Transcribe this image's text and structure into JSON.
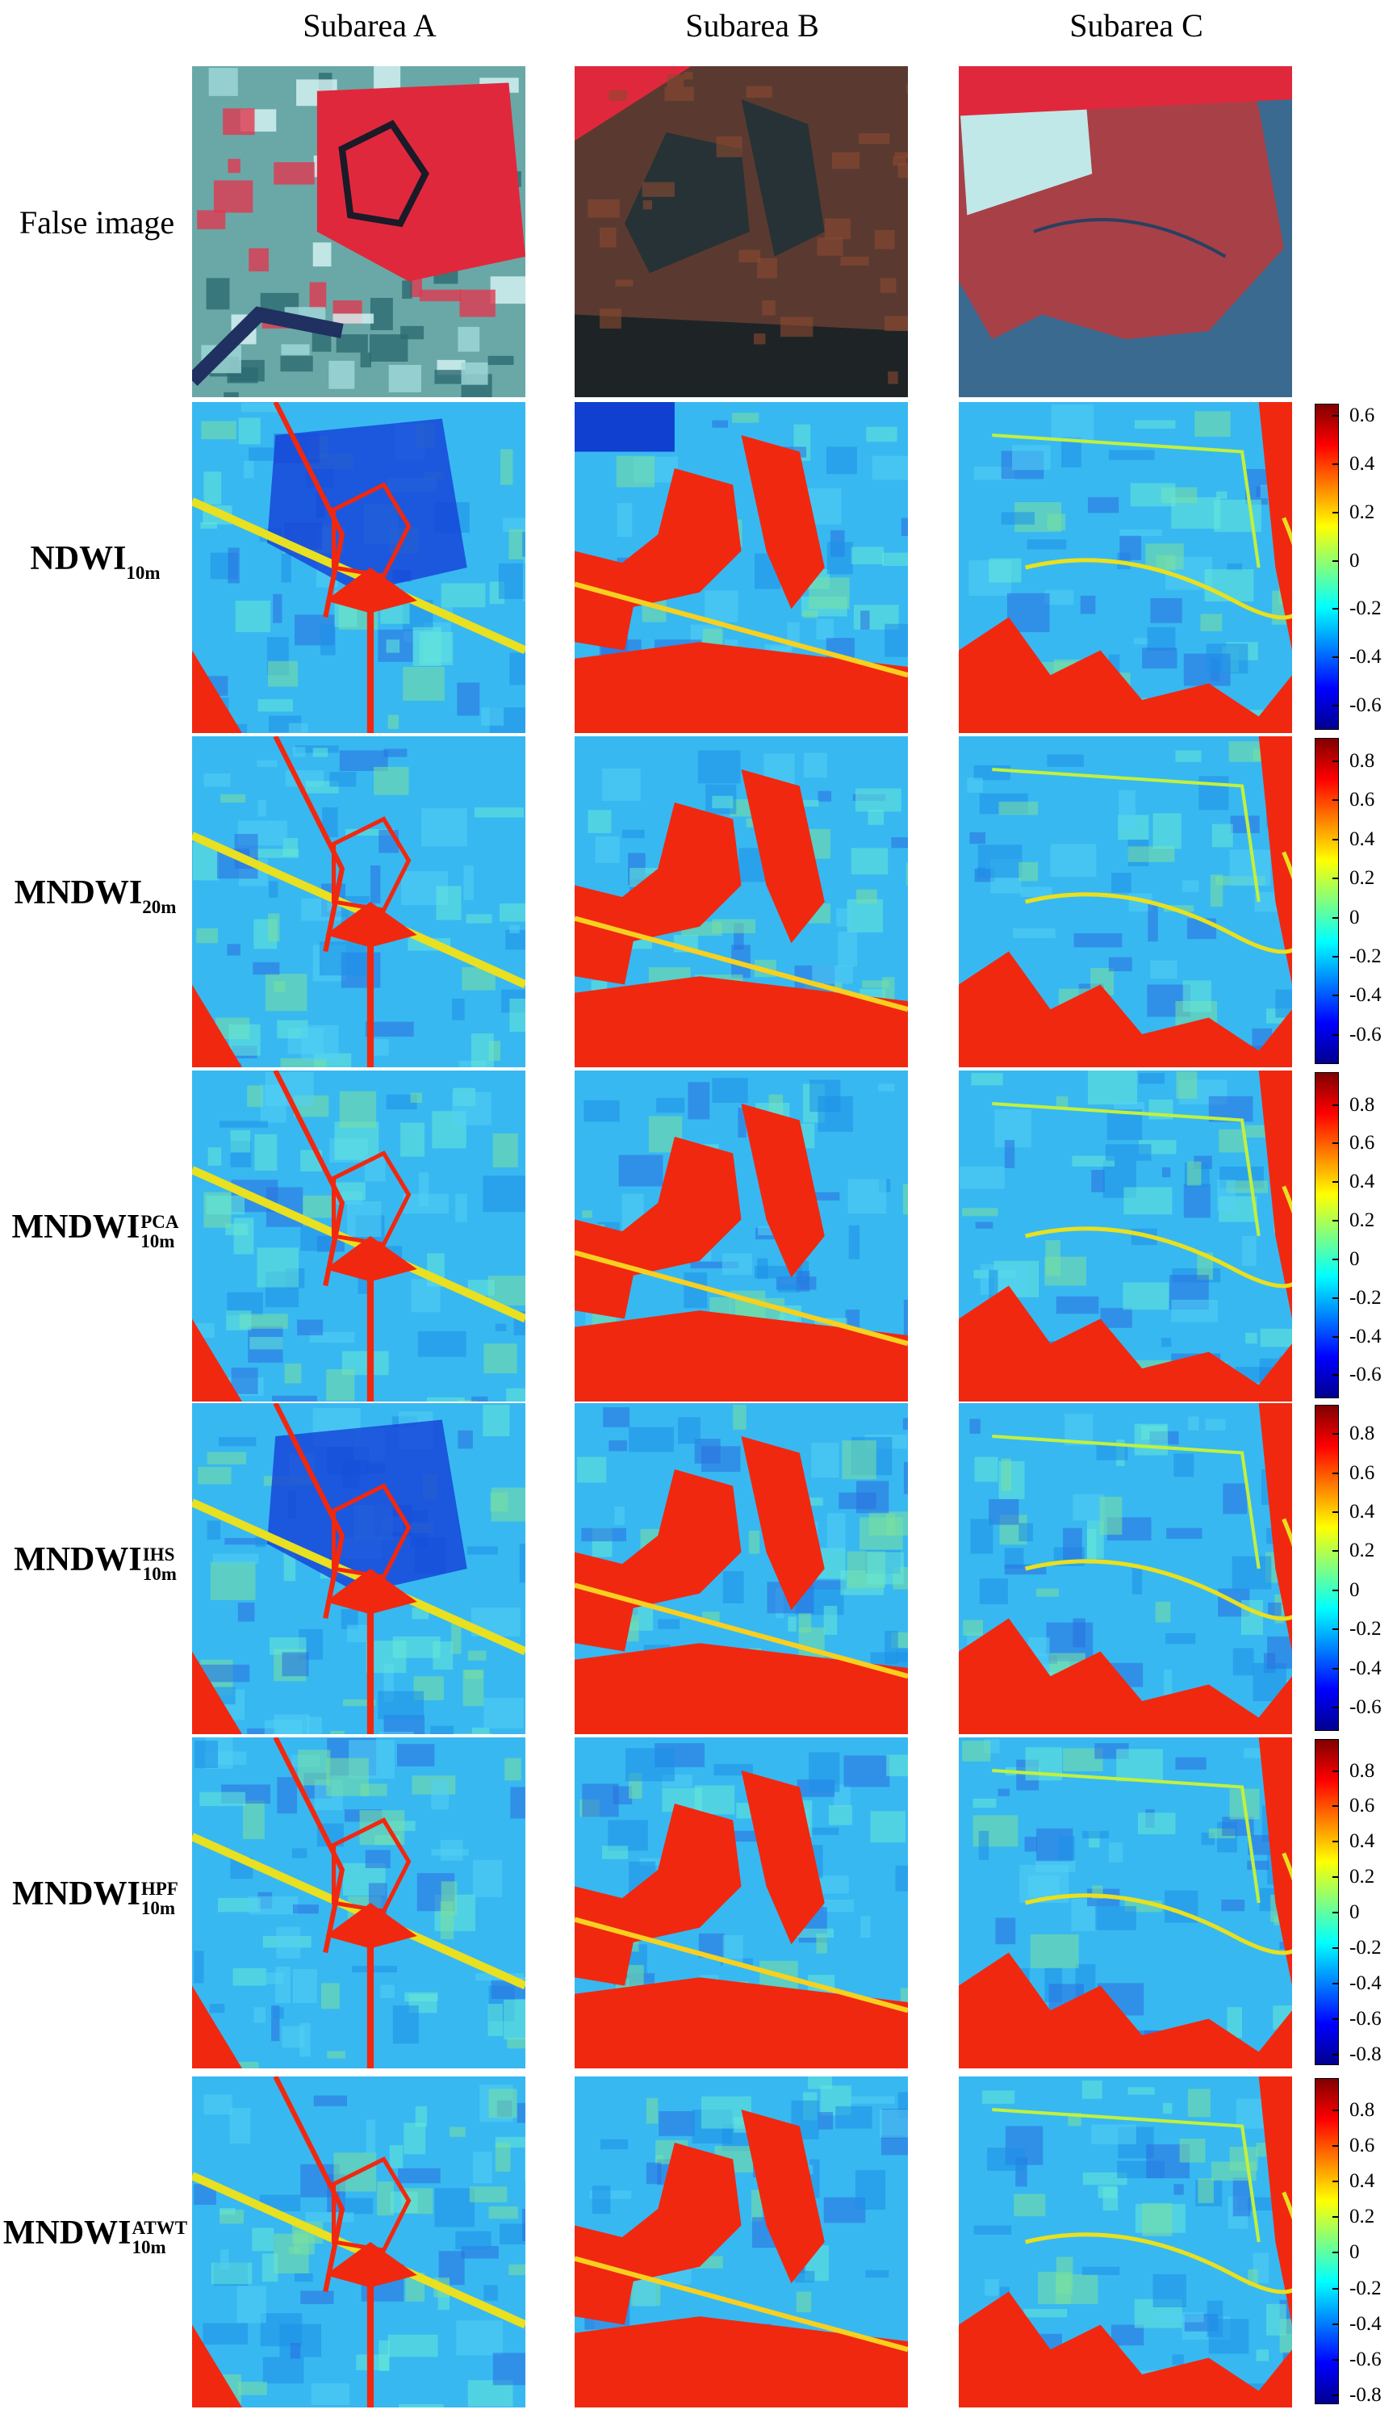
{
  "columns": [
    "Subarea A",
    "Subarea B",
    "Subarea C"
  ],
  "rows": [
    {
      "id": "false-image",
      "label": "False image",
      "type": "false-color"
    },
    {
      "id": "ndwi-10m",
      "label": "NDWI",
      "sub": "10m",
      "sup": "",
      "type": "index"
    },
    {
      "id": "mndwi-20m",
      "label": "MNDWI",
      "sub": "20m",
      "sup": "",
      "type": "index"
    },
    {
      "id": "mndwi-pca",
      "label": "MNDWI",
      "sub": "10m",
      "sup": "PCA",
      "type": "index"
    },
    {
      "id": "mndwi-ihs",
      "label": "MNDWI",
      "sub": "10m",
      "sup": "IHS",
      "type": "index"
    },
    {
      "id": "mndwi-hpf",
      "label": "MNDWI",
      "sub": "10m",
      "sup": "HPF",
      "type": "index"
    },
    {
      "id": "mndwi-atwt",
      "label": "MNDWI",
      "sub": "10m",
      "sup": "ATWT",
      "type": "index"
    }
  ],
  "colorbars": [
    {
      "row": "ndwi-10m",
      "min": -0.7,
      "max": 0.65,
      "ticks": [
        "0.6",
        "0.4",
        "0.2",
        "0",
        "-0.2",
        "-0.4",
        "-0.6"
      ],
      "tick_values": [
        0.6,
        0.4,
        0.2,
        0,
        -0.2,
        -0.4,
        -0.6
      ]
    },
    {
      "row": "mndwi-20m",
      "min": -0.75,
      "max": 0.92,
      "ticks": [
        "0.8",
        "0.6",
        "0.4",
        "0.2",
        "0",
        "-0.2",
        "-0.4",
        "-0.6"
      ],
      "tick_values": [
        0.8,
        0.6,
        0.4,
        0.2,
        0,
        -0.2,
        -0.4,
        -0.6
      ]
    },
    {
      "row": "mndwi-pca",
      "min": -0.72,
      "max": 0.97,
      "ticks": [
        "0.8",
        "0.6",
        "0.4",
        "0.2",
        "0",
        "-0.2",
        "-0.4",
        "-0.6"
      ],
      "tick_values": [
        0.8,
        0.6,
        0.4,
        0.2,
        0,
        -0.2,
        -0.4,
        -0.6
      ]
    },
    {
      "row": "mndwi-ihs",
      "min": -0.72,
      "max": 0.95,
      "ticks": [
        "0.8",
        "0.6",
        "0.4",
        "0.2",
        "0",
        "-0.2",
        "-0.4",
        "-0.6"
      ],
      "tick_values": [
        0.8,
        0.6,
        0.4,
        0.2,
        0,
        -0.2,
        -0.4,
        -0.6
      ]
    },
    {
      "row": "mndwi-hpf",
      "min": -0.86,
      "max": 0.98,
      "ticks": [
        "0.8",
        "0.6",
        "0.4",
        "0.2",
        "0",
        "-0.2",
        "-0.4",
        "-0.6",
        "-0.8"
      ],
      "tick_values": [
        0.8,
        0.6,
        0.4,
        0.2,
        0,
        -0.2,
        -0.4,
        -0.6,
        -0.8
      ]
    },
    {
      "row": "mndwi-atwt",
      "min": -0.85,
      "max": 0.98,
      "ticks": [
        "0.8",
        "0.6",
        "0.4",
        "0.2",
        "0",
        "-0.2",
        "-0.4",
        "-0.6",
        "-0.8"
      ],
      "tick_values": [
        0.8,
        0.6,
        0.4,
        0.2,
        0,
        -0.2,
        -0.4,
        -0.6,
        -0.8
      ]
    }
  ],
  "colors": {
    "jet": [
      "#00008f",
      "#0000ff",
      "#0080ff",
      "#00ffff",
      "#80ff80",
      "#ffff00",
      "#ff8000",
      "#ff0000",
      "#800000"
    ],
    "false_red": "#e0283c",
    "false_dark": "#3a2a26",
    "false_cyan": "#8fd6d8",
    "index_bg": "#38b8f0",
    "index_water": "#f02810"
  }
}
